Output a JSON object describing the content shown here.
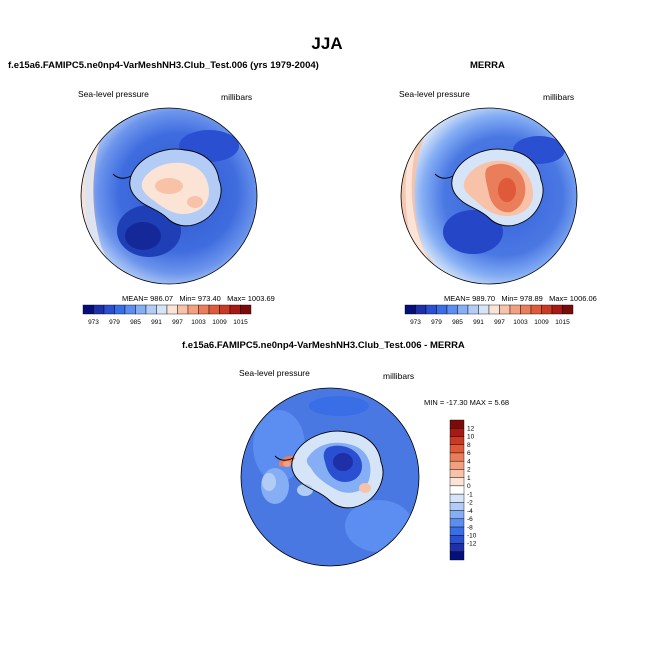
{
  "page_title": "JJA",
  "chart_data": [
    {
      "type": "heatmap",
      "projection": "south-polar-stereographic",
      "title": "f.e15a6.FAMIPC5.ne0np4-VarMeshNH3.Club_Test.006 (yrs 1979-2004)",
      "variable_label": "Sea-level pressure",
      "units_label": "millibars",
      "stats": {
        "mean": "986.07",
        "min": "973.40",
        "max": "1003.69"
      },
      "stats_text": {
        "mean": "MEAN= 986.07",
        "min": "Min= 973.40",
        "max": "Max= 1003.69"
      },
      "colorbar": {
        "orientation": "horizontal",
        "tick_labels": [
          "973",
          "979",
          "985",
          "991",
          "997",
          "1003",
          "1009",
          "1015"
        ],
        "colors": [
          "#050f7a",
          "#1e2fa8",
          "#2a4fd0",
          "#3a6ee6",
          "#5b8ef0",
          "#85aef4",
          "#b3ccf6",
          "#d6e4f8",
          "#fbe3d6",
          "#f7c2a8",
          "#f2a07f",
          "#ea7d5a",
          "#de5a3a",
          "#c93a25",
          "#a51a14",
          "#7a0b0b"
        ]
      },
      "colorbar_direction": "horizontal"
    },
    {
      "type": "heatmap",
      "projection": "south-polar-stereographic",
      "title": "MERRA",
      "variable_label": "Sea-level pressure",
      "units_label": "millibars",
      "stats": {
        "mean": "989.70",
        "min": "978.89",
        "max": "1006.06"
      },
      "stats_text": {
        "mean": "MEAN= 989.70",
        "min": "Min= 978.89",
        "max": "Max= 1006.06"
      },
      "colorbar": {
        "orientation": "horizontal",
        "tick_labels": [
          "973",
          "979",
          "985",
          "991",
          "997",
          "1003",
          "1009",
          "1015"
        ],
        "colors": [
          "#050f7a",
          "#1e2fa8",
          "#2a4fd0",
          "#3a6ee6",
          "#5b8ef0",
          "#85aef4",
          "#b3ccf6",
          "#d6e4f8",
          "#fbe3d6",
          "#f7c2a8",
          "#f2a07f",
          "#ea7d5a",
          "#de5a3a",
          "#c93a25",
          "#a51a14",
          "#7a0b0b"
        ]
      }
    },
    {
      "type": "heatmap",
      "projection": "south-polar-stereographic",
      "title": "f.e15a6.FAMIPC5.ne0np4-VarMeshNH3.Club_Test.006 - MERRA",
      "variable_label": "Sea-level pressure",
      "units_label": "millibars",
      "stats": {
        "min": "-17.30",
        "max": "5.68"
      },
      "stats_text": "MIN = -17.30 MAX =   5.68",
      "colorbar": {
        "orientation": "vertical",
        "tick_labels": [
          "12",
          "10",
          "8",
          "6",
          "4",
          "2",
          "1",
          "0",
          "-1",
          "-2",
          "-4",
          "-6",
          "-8",
          "-10",
          "-12"
        ],
        "colors": [
          "#7a0b0b",
          "#a51a14",
          "#c93a25",
          "#de5a3a",
          "#ea7d5a",
          "#f2a07f",
          "#f7c2a8",
          "#fbe3d6",
          "#ffffff",
          "#d6e4f8",
          "#b3ccf6",
          "#85aef4",
          "#5b8ef0",
          "#3a6ee6",
          "#2a4fd0",
          "#1e2fa8",
          "#050f7a"
        ]
      }
    }
  ]
}
